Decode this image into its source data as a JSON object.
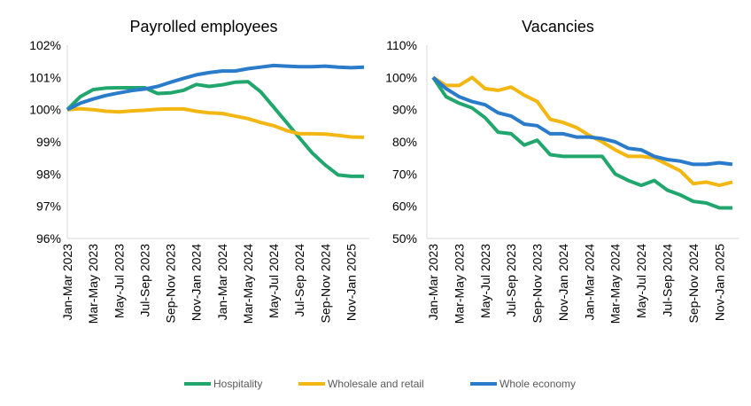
{
  "colors": {
    "Hospitality": "#21A66E",
    "Wholesale and retail": "#F2B712",
    "Whole economy": "#2B7BCB",
    "axis": "#D9D9D9"
  },
  "legend": {
    "position": "bottom",
    "items": [
      "Hospitality",
      "Wholesale and retail",
      "Whole economy"
    ]
  },
  "chart_data": [
    {
      "type": "line",
      "title": "Payrolled employees",
      "xlabel": "",
      "ylabel": "",
      "ylim": [
        96,
        102
      ],
      "y_ticks": [
        "96%",
        "97%",
        "98%",
        "99%",
        "100%",
        "101%",
        "102%"
      ],
      "grid": false,
      "x_tick_labels": [
        "Jan-Mar 2023",
        "Mar-May 2023",
        "May-Jul 2023",
        "Jul-Sep 2023",
        "Sep-Nov 2023",
        "Nov-Jan 2024",
        "Jan-Mar 2024",
        "Mar-May 2024",
        "May-Jul 2024",
        "Jul-Sep 2024",
        "Sep-Nov 2024",
        "Nov-Jan 2025"
      ],
      "x": [
        "Jan-Mar 2023",
        "Feb-Apr 2023",
        "Mar-May 2023",
        "Apr-Jun 2023",
        "May-Jul 2023",
        "Jun-Aug 2023",
        "Jul-Sep 2023",
        "Aug-Oct 2023",
        "Sep-Nov 2023",
        "Oct-Dec 2023",
        "Nov-Jan 2024",
        "Dec-Feb 2024",
        "Jan-Mar 2024",
        "Feb-Apr 2024",
        "Mar-May 2024",
        "Apr-Jun 2024",
        "May-Jul 2024",
        "Jun-Aug 2024",
        "Jul-Sep 2024",
        "Aug-Oct 2024",
        "Sep-Nov 2024",
        "Oct-Dec 2024",
        "Nov-Jan 2025",
        "Dec-Feb 2025"
      ],
      "series": [
        {
          "name": "Hospitality",
          "values": [
            100.0,
            100.4,
            100.62,
            100.67,
            100.68,
            100.68,
            100.68,
            100.5,
            100.52,
            100.6,
            100.78,
            100.72,
            100.77,
            100.85,
            100.87,
            100.55,
            100.08,
            99.6,
            99.12,
            98.65,
            98.28,
            97.97,
            97.93,
            97.93
          ]
        },
        {
          "name": "Wholesale and retail",
          "values": [
            100.0,
            100.03,
            100.0,
            99.95,
            99.93,
            99.96,
            99.98,
            100.01,
            100.02,
            100.02,
            99.95,
            99.9,
            99.88,
            99.8,
            99.72,
            99.6,
            99.5,
            99.35,
            99.25,
            99.25,
            99.24,
            99.2,
            99.15,
            99.14
          ]
        },
        {
          "name": "Whole economy",
          "values": [
            100.0,
            100.2,
            100.33,
            100.44,
            100.52,
            100.59,
            100.64,
            100.72,
            100.85,
            100.97,
            101.08,
            101.15,
            101.2,
            101.2,
            101.27,
            101.32,
            101.37,
            101.35,
            101.33,
            101.33,
            101.35,
            101.32,
            101.3,
            101.32
          ]
        }
      ]
    },
    {
      "type": "line",
      "title": "Vacancies",
      "xlabel": "",
      "ylabel": "",
      "ylim": [
        50,
        110
      ],
      "y_ticks": [
        "50%",
        "60%",
        "70%",
        "80%",
        "90%",
        "100%",
        "110%"
      ],
      "grid": false,
      "x_tick_labels": [
        "Jan-Mar 2023",
        "Mar-May 2023",
        "May-Jul 2023",
        "Jul-Sep 2023",
        "Sep-Nov 2023",
        "Nov-Jan 2024",
        "Jan-Mar 2024",
        "Mar-May 2024",
        "May-Jul 2024",
        "Jul-Sep 2024",
        "Sep-Nov 2024",
        "Nov-Jan 2025"
      ],
      "x": [
        "Jan-Mar 2023",
        "Feb-Apr 2023",
        "Mar-May 2023",
        "Apr-Jun 2023",
        "May-Jul 2023",
        "Jun-Aug 2023",
        "Jul-Sep 2023",
        "Aug-Oct 2023",
        "Sep-Nov 2023",
        "Oct-Dec 2023",
        "Nov-Jan 2024",
        "Dec-Feb 2024",
        "Jan-Mar 2024",
        "Feb-Apr 2024",
        "Mar-May 2024",
        "Apr-Jun 2024",
        "May-Jul 2024",
        "Jun-Aug 2024",
        "Jul-Sep 2024",
        "Aug-Oct 2024",
        "Sep-Nov 2024",
        "Oct-Dec 2024",
        "Nov-Jan 2025",
        "Dec-Feb 2025"
      ],
      "series": [
        {
          "name": "Hospitality",
          "values": [
            100.0,
            94.0,
            92.0,
            90.5,
            87.5,
            83.0,
            82.5,
            79.0,
            80.5,
            76.0,
            75.5,
            75.5,
            75.5,
            75.5,
            70.0,
            68.0,
            66.5,
            68.0,
            65.0,
            63.5,
            61.5,
            61.0,
            59.5,
            59.5
          ]
        },
        {
          "name": "Wholesale and retail",
          "values": [
            100.0,
            97.5,
            97.5,
            100.0,
            96.5,
            96.0,
            97.0,
            94.5,
            92.5,
            87.0,
            86.0,
            84.5,
            82.0,
            80.0,
            77.5,
            75.5,
            75.5,
            75.0,
            73.0,
            71.0,
            67.0,
            67.5,
            66.5,
            67.5
          ]
        },
        {
          "name": "Whole economy",
          "values": [
            100.0,
            96.5,
            94.0,
            92.5,
            91.5,
            89.0,
            88.0,
            85.5,
            85.0,
            82.5,
            82.5,
            81.5,
            81.5,
            81.0,
            80.0,
            78.0,
            77.5,
            75.5,
            74.5,
            74.0,
            73.0,
            73.0,
            73.5,
            73.0
          ]
        }
      ]
    }
  ]
}
